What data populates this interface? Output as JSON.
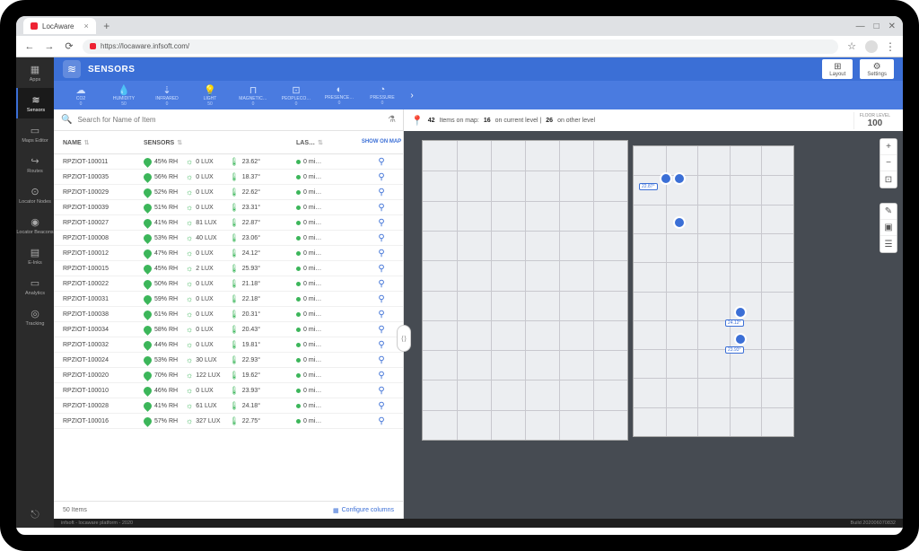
{
  "browser": {
    "tab_title": "LocAware",
    "url": "https://locaware.infsoft.com/",
    "window_buttons": [
      "—",
      "□",
      "✕"
    ]
  },
  "leftrail": {
    "items": [
      {
        "icon": "▦",
        "label": "Apps"
      },
      {
        "icon": "≋",
        "label": "Sensors"
      },
      {
        "icon": "▭",
        "label": "Maps Editor"
      },
      {
        "icon": "↪",
        "label": "Routes"
      },
      {
        "icon": "⊙",
        "label": "Locator Nodes"
      },
      {
        "icon": "◉",
        "label": "Locator Beacons"
      },
      {
        "icon": "▤",
        "label": "E-Inks"
      },
      {
        "icon": "▭",
        "label": "Analytics"
      },
      {
        "icon": "◎",
        "label": "Tracking"
      }
    ],
    "active_index": 1,
    "exit_icon": "⎋"
  },
  "header": {
    "title": "SENSORS",
    "right_buttons": [
      {
        "icon": "⊞",
        "label": "Layout"
      },
      {
        "icon": "⚙",
        "label": "Settings"
      }
    ]
  },
  "categories": {
    "items": [
      {
        "icon": "☁",
        "name": "CO2",
        "count": "0"
      },
      {
        "icon": "💧",
        "name": "HUMIDITY",
        "count": "50"
      },
      {
        "icon": "⇣",
        "name": "INFRARED",
        "count": "0"
      },
      {
        "icon": "💡",
        "name": "LIGHT",
        "count": "50"
      },
      {
        "icon": "⊓",
        "name": "MAGNETIC…",
        "count": "0"
      },
      {
        "icon": "⊡",
        "name": "PEOPLECO…",
        "count": "0"
      },
      {
        "icon": "◐",
        "name": "PRESENCE…",
        "count": "0"
      },
      {
        "icon": "◔",
        "name": "PRESSURE",
        "count": "0"
      }
    ],
    "arrow": "›"
  },
  "search": {
    "placeholder": "Search for Name of Item"
  },
  "table": {
    "headers": {
      "name": "NAME",
      "sensors": "SENSORS",
      "last": "LAS…",
      "map": "SHOW ON MAP"
    },
    "rows": [
      {
        "name": "RPZIOT-100011",
        "rh": "45% RH",
        "lux": "0 LUX",
        "temp": "23.62°",
        "last": "0 mi…"
      },
      {
        "name": "RPZIOT-100035",
        "rh": "56% RH",
        "lux": "0 LUX",
        "temp": "18.37°",
        "last": "0 mi…"
      },
      {
        "name": "RPZIOT-100029",
        "rh": "52% RH",
        "lux": "0 LUX",
        "temp": "22.62°",
        "last": "0 mi…"
      },
      {
        "name": "RPZIOT-100039",
        "rh": "51% RH",
        "lux": "0 LUX",
        "temp": "23.31°",
        "last": "0 mi…"
      },
      {
        "name": "RPZIOT-100027",
        "rh": "41% RH",
        "lux": "81 LUX",
        "temp": "22.87°",
        "last": "0 mi…"
      },
      {
        "name": "RPZIOT-100008",
        "rh": "53% RH",
        "lux": "40 LUX",
        "temp": "23.06°",
        "last": "0 mi…"
      },
      {
        "name": "RPZIOT-100012",
        "rh": "47% RH",
        "lux": "0 LUX",
        "temp": "24.12°",
        "last": "0 mi…"
      },
      {
        "name": "RPZIOT-100015",
        "rh": "45% RH",
        "lux": "2 LUX",
        "temp": "25.93°",
        "last": "0 mi…"
      },
      {
        "name": "RPZIOT-100022",
        "rh": "50% RH",
        "lux": "0 LUX",
        "temp": "21.18°",
        "last": "0 mi…"
      },
      {
        "name": "RPZIOT-100031",
        "rh": "59% RH",
        "lux": "0 LUX",
        "temp": "22.18°",
        "last": "0 mi…"
      },
      {
        "name": "RPZIOT-100038",
        "rh": "61% RH",
        "lux": "0 LUX",
        "temp": "20.31°",
        "last": "0 mi…"
      },
      {
        "name": "RPZIOT-100034",
        "rh": "58% RH",
        "lux": "0 LUX",
        "temp": "20.43°",
        "last": "0 mi…"
      },
      {
        "name": "RPZIOT-100032",
        "rh": "44% RH",
        "lux": "0 LUX",
        "temp": "19.81°",
        "last": "0 mi…"
      },
      {
        "name": "RPZIOT-100024",
        "rh": "53% RH",
        "lux": "30 LUX",
        "temp": "22.93°",
        "last": "0 mi…"
      },
      {
        "name": "RPZIOT-100020",
        "rh": "70% RH",
        "lux": "122 LUX",
        "temp": "19.62°",
        "last": "0 mi…"
      },
      {
        "name": "RPZIOT-100010",
        "rh": "46% RH",
        "lux": "0 LUX",
        "temp": "23.93°",
        "last": "0 mi…"
      },
      {
        "name": "RPZIOT-100028",
        "rh": "41% RH",
        "lux": "61 LUX",
        "temp": "24.18°",
        "last": "0 mi…"
      },
      {
        "name": "RPZIOT-100016",
        "rh": "57% RH",
        "lux": "327 LUX",
        "temp": "22.75°",
        "last": "0 mi…"
      }
    ],
    "footer_count": "50 Items",
    "configure": "Configure columns"
  },
  "map": {
    "summary_count": "42",
    "summary_text_1": "Items on map:",
    "summary_current": "16",
    "summary_text_2": "on current level |",
    "summary_other": "26",
    "summary_text_3": "on other level",
    "floor_label": "FLOOR LEVEL",
    "floor_value": "100",
    "sensor_labels": [
      "22.87°",
      "24.12°",
      "23.93°"
    ],
    "colors": {
      "pin": "#3b6fd6",
      "bg": "#464b52",
      "floor": "#eceef1"
    }
  },
  "footer": {
    "left": "infsoft - locaware platform - 2020",
    "right": "Build 202006070832"
  }
}
